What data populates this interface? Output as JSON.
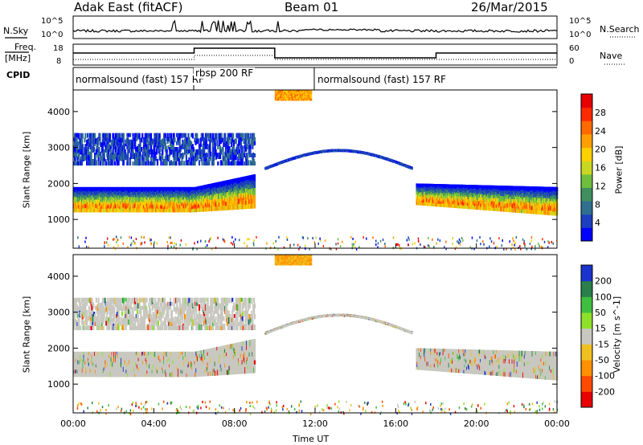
{
  "header": {
    "radar": "Adak East (fitACF)",
    "beam": "Beam 01",
    "date": "26/Mar/2015"
  },
  "panel_labels": {
    "nsky": "N.Sky",
    "nsky_ticks": [
      "10^5",
      "10^0"
    ],
    "nsearch": "N.Search",
    "nsearch_ticks": [
      "10^5",
      "10^0"
    ],
    "freq": "Freq.",
    "freq_unit": "[MHz]",
    "freq_ticks": [
      "18",
      "8"
    ],
    "nave": "Nave",
    "nave_ticks": [
      "60",
      "0"
    ],
    "cpid": "CPID"
  },
  "cpid_segments": [
    {
      "label": "normalsound (fast) 157 RF",
      "start_hour": 0,
      "end_hour": 6
    },
    {
      "label": "rbsp 200 RF",
      "start_hour": 6,
      "end_hour": 12
    },
    {
      "label": "normalsound (fast) 157 RF",
      "start_hour": 12,
      "end_hour": 24
    }
  ],
  "chart_data": [
    {
      "type": "heatmap",
      "title": "",
      "xlabel": "Time UT",
      "ylabel": "Slant Range [km]",
      "xlim": [
        0,
        24
      ],
      "ylim": [
        200,
        4600
      ],
      "x_ticks": [
        "00:00",
        "04:00",
        "08:00",
        "12:00",
        "16:00",
        "20:00",
        "00:00"
      ],
      "y_ticks": [
        "1000",
        "2000",
        "3000",
        "4000"
      ],
      "colorbar": {
        "label": "Power [dB]",
        "ticks": [
          "4",
          "8",
          "12",
          "16",
          "20",
          "24",
          "28"
        ],
        "colors": [
          "#0000ff",
          "#1a3fbf",
          "#2f6f8f",
          "#3f8f5f",
          "#6fbf3f",
          "#c8d822",
          "#ffd000",
          "#ffa000",
          "#ff6a00",
          "#ff2a00",
          "#e80000"
        ]
      },
      "features": [
        {
          "name": "main band",
          "start_hour": 0,
          "end_hour": 9,
          "range_km": [
            1200,
            1900
          ]
        },
        {
          "name": "main band",
          "start_hour": 17,
          "end_hour": 24,
          "range_km": [
            1100,
            2000
          ]
        },
        {
          "name": "upper scatter",
          "start_hour": 0,
          "end_hour": 9,
          "range_km": [
            2500,
            3400
          ]
        },
        {
          "name": "thin trace",
          "start_hour": 9.5,
          "end_hour": 16.8,
          "range_km": [
            2400,
            3000
          ]
        },
        {
          "name": "far range patch",
          "start_hour": 10,
          "end_hour": 11.8,
          "range_km": [
            4300,
            4600
          ]
        }
      ]
    },
    {
      "type": "heatmap",
      "title": "",
      "xlabel": "Time UT",
      "ylabel": "Slant Range [km]",
      "xlim": [
        0,
        24
      ],
      "ylim": [
        200,
        4600
      ],
      "x_ticks": [
        "00:00",
        "04:00",
        "08:00",
        "12:00",
        "16:00",
        "20:00",
        "00:00"
      ],
      "y_ticks": [
        "1000",
        "2000",
        "3000",
        "4000"
      ],
      "colorbar": {
        "label": "Velocity [m s^-1]",
        "ticks": [
          "200",
          "100",
          "50",
          "15",
          "-15",
          "-50",
          "-100",
          "-200"
        ],
        "colors": [
          "#1a33cc",
          "#2a7f4a",
          "#3fbf3f",
          "#8ee02a",
          "#c8c8c0",
          "#f0c020",
          "#ff9000",
          "#ff4a00",
          "#e80000"
        ]
      }
    }
  ]
}
